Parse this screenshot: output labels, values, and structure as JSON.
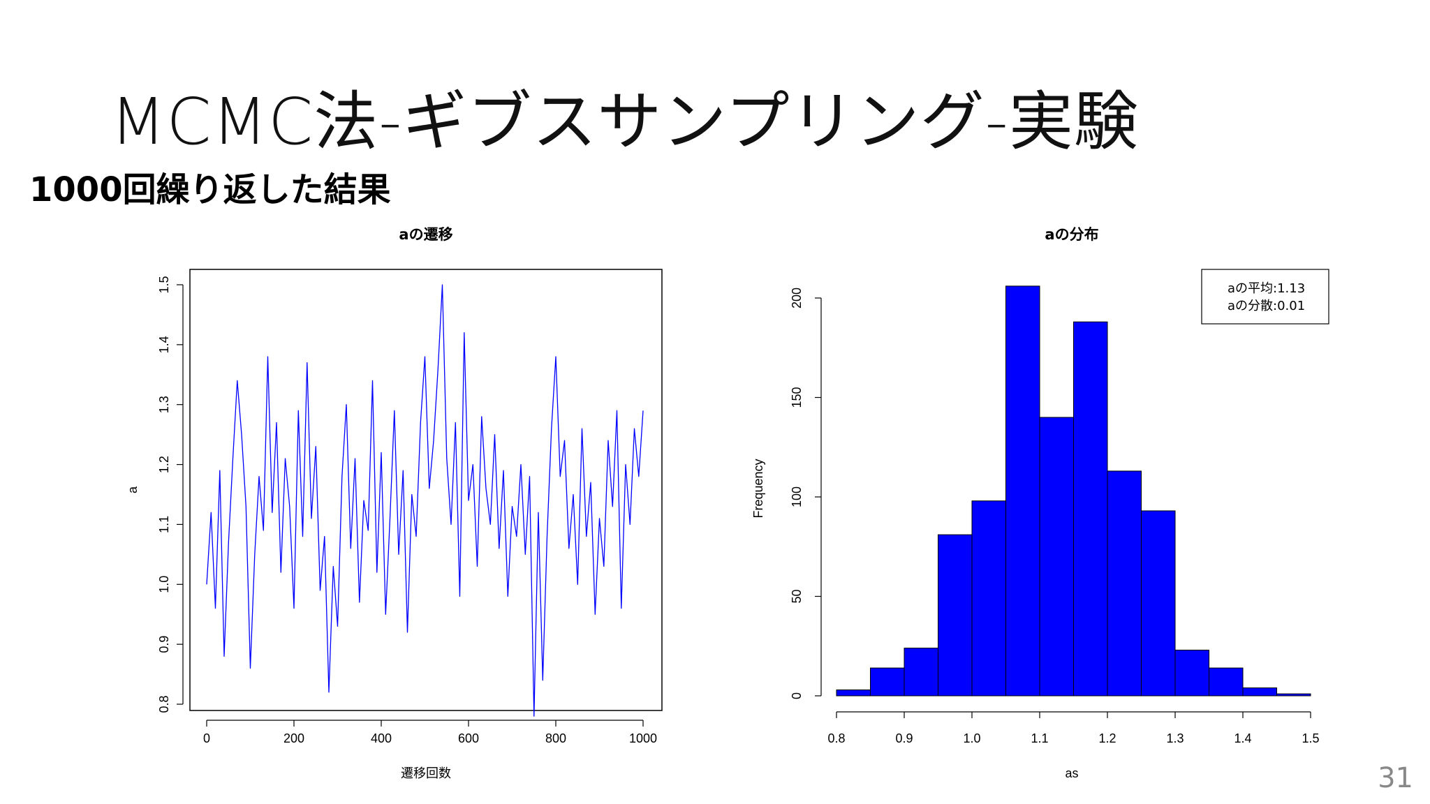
{
  "slide": {
    "title": "MCMC法-ギブスサンプリング-実験",
    "subtitle": "1000回繰り返した結果",
    "page_number": "31"
  },
  "chart_data": [
    {
      "type": "line",
      "title": "aの遷移",
      "xlabel": "遷移回数",
      "ylabel": "a",
      "xlim": [
        0,
        1000
      ],
      "ylim": [
        0.8,
        1.5
      ],
      "x_ticks": [
        "0",
        "200",
        "400",
        "600",
        "800",
        "1000"
      ],
      "y_ticks": [
        "0.8",
        "0.9",
        "1.0",
        "1.1",
        "1.2",
        "1.3",
        "1.4",
        "1.5"
      ],
      "series_color": "#0000ff",
      "series": [
        {
          "x": [
            0,
            10,
            20,
            30,
            40,
            50,
            60,
            70,
            80,
            90,
            100,
            110,
            120,
            130,
            140,
            150,
            160,
            170,
            180,
            190,
            200,
            210,
            220,
            230,
            240,
            250,
            260,
            270,
            280,
            290,
            300,
            310,
            320,
            330,
            340,
            350,
            360,
            370,
            380,
            390,
            400,
            410,
            420,
            430,
            440,
            450,
            460,
            470,
            480,
            490,
            500,
            510,
            520,
            530,
            540,
            550,
            560,
            570,
            580,
            590,
            600,
            610,
            620,
            630,
            640,
            650,
            660,
            670,
            680,
            690,
            700,
            710,
            720,
            730,
            740,
            750,
            760,
            770,
            780,
            790,
            800,
            810,
            820,
            830,
            840,
            850,
            860,
            870,
            880,
            890,
            900,
            910,
            920,
            930,
            940,
            950,
            960,
            970,
            980,
            990,
            1000
          ],
          "y": [
            1.0,
            1.12,
            0.96,
            1.19,
            0.88,
            1.07,
            1.21,
            1.34,
            1.25,
            1.13,
            0.86,
            1.05,
            1.18,
            1.09,
            1.38,
            1.12,
            1.27,
            1.02,
            1.21,
            1.13,
            0.96,
            1.29,
            1.08,
            1.37,
            1.11,
            1.23,
            0.99,
            1.08,
            0.82,
            1.03,
            0.93,
            1.18,
            1.3,
            1.06,
            1.21,
            0.97,
            1.14,
            1.09,
            1.34,
            1.02,
            1.22,
            0.95,
            1.11,
            1.29,
            1.05,
            1.19,
            0.92,
            1.15,
            1.08,
            1.27,
            1.38,
            1.16,
            1.24,
            1.36,
            1.5,
            1.21,
            1.1,
            1.27,
            0.98,
            1.42,
            1.14,
            1.2,
            1.03,
            1.28,
            1.16,
            1.1,
            1.25,
            1.06,
            1.19,
            0.98,
            1.13,
            1.08,
            1.2,
            1.05,
            1.18,
            0.78,
            1.12,
            0.84,
            1.08,
            1.26,
            1.38,
            1.18,
            1.24,
            1.06,
            1.15,
            1.0,
            1.26,
            1.08,
            1.17,
            0.95,
            1.11,
            1.03,
            1.24,
            1.13,
            1.29,
            0.96,
            1.2,
            1.1,
            1.26,
            1.18,
            1.29
          ]
        }
      ]
    },
    {
      "type": "bar",
      "title": "aの分布",
      "xlabel": "as",
      "ylabel": "Frequency",
      "xlim": [
        0.8,
        1.5
      ],
      "ylim": [
        0,
        200
      ],
      "x_ticks": [
        "0.8",
        "0.9",
        "1.0",
        "1.1",
        "1.2",
        "1.3",
        "1.4",
        "1.5"
      ],
      "y_ticks": [
        "0",
        "50",
        "100",
        "150",
        "200"
      ],
      "bin_edges": [
        0.8,
        0.85,
        0.9,
        0.95,
        1.0,
        1.05,
        1.1,
        1.15,
        1.2,
        1.25,
        1.3,
        1.35,
        1.4,
        1.45,
        1.5
      ],
      "values": [
        3,
        14,
        24,
        81,
        98,
        206,
        140,
        188,
        113,
        93,
        23,
        14,
        4,
        1
      ],
      "bar_color": "#0000ff",
      "legend": {
        "lines": [
          "aの平均:1.13",
          "aの分散:0.01"
        ],
        "position": "top-right"
      }
    }
  ]
}
